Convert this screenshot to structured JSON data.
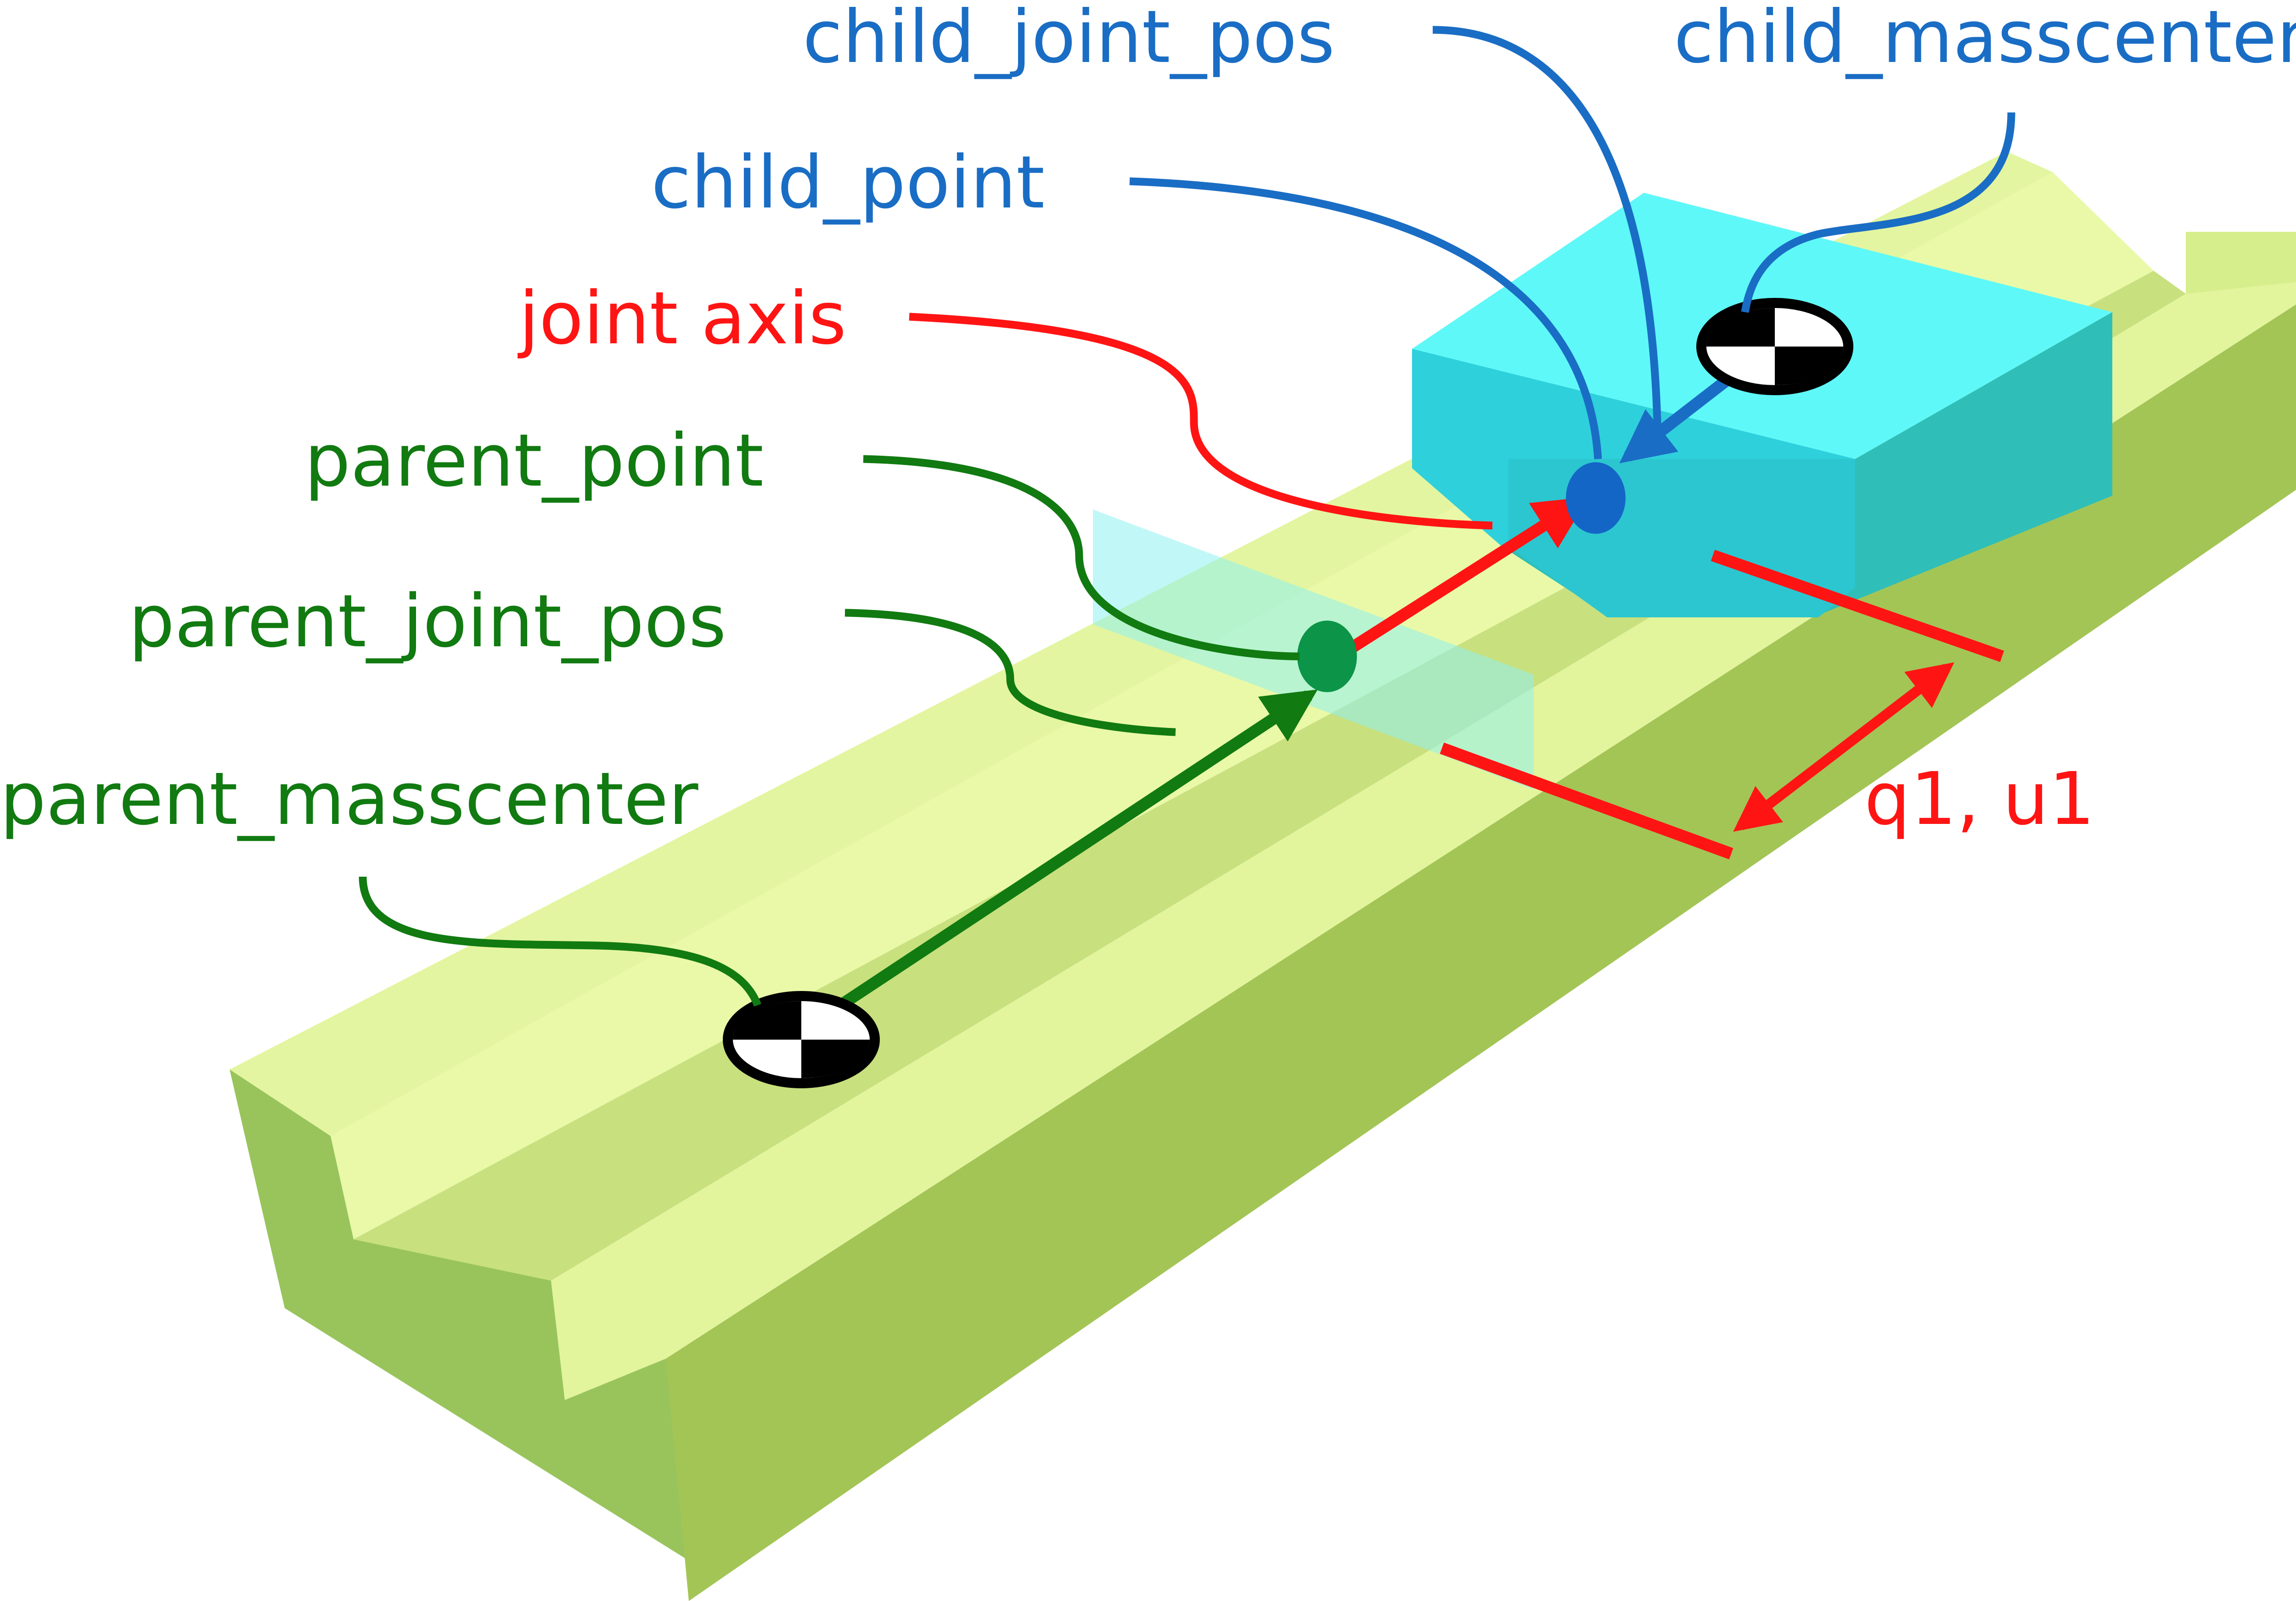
{
  "labels": {
    "child_joint_pos": "child_joint_pos",
    "child_masscenter": "child_masscenter",
    "child_point": "child_point",
    "joint_axis": "joint axis",
    "parent_point": "parent_point",
    "parent_joint_pos": "parent_joint_pos",
    "parent_masscenter": "parent_masscenter",
    "coordinates": "q1, u1"
  },
  "colors": {
    "parent": "#117a11",
    "child": "#1a6dc4",
    "joint": "#ff1414",
    "rail_top": "#e5f7a0",
    "rail_side": "#a0c455",
    "slider_top": "#5ff8f8",
    "slider_side": "#2ed0dc"
  },
  "icons": {
    "parent_masscenter": "center-of-mass-icon",
    "child_masscenter": "center-of-mass-icon",
    "parent_joint_pos": "point-marker",
    "child_joint_pos": "point-marker"
  }
}
